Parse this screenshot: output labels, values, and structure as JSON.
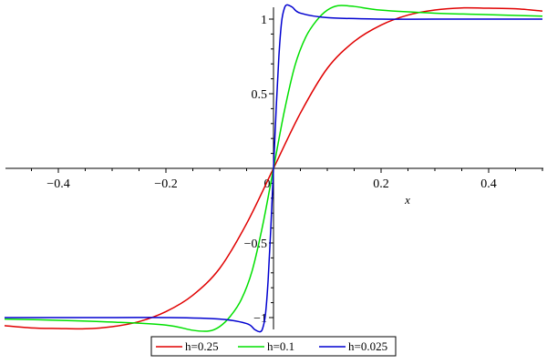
{
  "chart_data": {
    "type": "line",
    "title": "",
    "xlabel": "x",
    "ylabel": "",
    "xlim": [
      -0.5,
      0.5
    ],
    "ylim": [
      -1.1,
      1.1
    ],
    "grid": false,
    "legend_position": "bottom",
    "x_ticks": [
      {
        "value": -0.4,
        "label": "−0.4"
      },
      {
        "value": -0.2,
        "label": "−0.2"
      },
      {
        "value": 0,
        "label": "0"
      },
      {
        "value": 0.2,
        "label": "0.2"
      },
      {
        "value": 0.4,
        "label": "0.4"
      }
    ],
    "y_ticks": [
      {
        "value": -1,
        "label": "−1"
      },
      {
        "value": -0.5,
        "label": "−0.5"
      },
      {
        "value": 0.5,
        "label": "0.5"
      },
      {
        "value": 1,
        "label": "1"
      }
    ],
    "series": [
      {
        "name": "h=0.25",
        "color": "#e00000",
        "points": [
          [
            -0.5,
            -1.054
          ],
          [
            -0.45,
            -1.069
          ],
          [
            -0.4,
            -1.073
          ],
          [
            -0.35,
            -1.075
          ],
          [
            -0.3,
            -1.061
          ],
          [
            -0.25,
            -1.027
          ],
          [
            -0.2,
            -0.96
          ],
          [
            -0.15,
            -0.85
          ],
          [
            -0.1,
            -0.67
          ],
          [
            -0.05,
            -0.37
          ],
          [
            0,
            0
          ],
          [
            0.05,
            0.37
          ],
          [
            0.1,
            0.67
          ],
          [
            0.15,
            0.85
          ],
          [
            0.2,
            0.96
          ],
          [
            0.25,
            1.027
          ],
          [
            0.3,
            1.061
          ],
          [
            0.35,
            1.075
          ],
          [
            0.4,
            1.073
          ],
          [
            0.45,
            1.069
          ],
          [
            0.5,
            1.054
          ]
        ]
      },
      {
        "name": "h=0.1",
        "color": "#00e000",
        "points": [
          [
            -0.5,
            -1.01
          ],
          [
            -0.4,
            -1.018
          ],
          [
            -0.3,
            -1.03
          ],
          [
            -0.2,
            -1.05
          ],
          [
            -0.15,
            -1.085
          ],
          [
            -0.12,
            -1.09
          ],
          [
            -0.1,
            -1.06
          ],
          [
            -0.08,
            -0.99
          ],
          [
            -0.06,
            -0.88
          ],
          [
            -0.04,
            -0.69
          ],
          [
            -0.02,
            -0.38
          ],
          [
            0,
            0
          ],
          [
            0.02,
            0.38
          ],
          [
            0.04,
            0.69
          ],
          [
            0.06,
            0.88
          ],
          [
            0.08,
            0.99
          ],
          [
            0.1,
            1.06
          ],
          [
            0.12,
            1.09
          ],
          [
            0.15,
            1.085
          ],
          [
            0.2,
            1.06
          ],
          [
            0.3,
            1.04
          ],
          [
            0.4,
            1.03
          ],
          [
            0.5,
            1.02
          ]
        ]
      },
      {
        "name": "h=0.025",
        "color": "#0000d0",
        "points": [
          [
            -0.5,
            -1.0
          ],
          [
            -0.3,
            -1.0
          ],
          [
            -0.2,
            -1.0
          ],
          [
            -0.1,
            -1.01
          ],
          [
            -0.05,
            -1.04
          ],
          [
            -0.035,
            -1.08
          ],
          [
            -0.025,
            -1.095
          ],
          [
            -0.02,
            -1.07
          ],
          [
            -0.015,
            -0.98
          ],
          [
            -0.01,
            -0.75
          ],
          [
            -0.005,
            -0.4
          ],
          [
            0,
            0
          ],
          [
            0.005,
            0.4
          ],
          [
            0.01,
            0.75
          ],
          [
            0.015,
            0.98
          ],
          [
            0.02,
            1.07
          ],
          [
            0.025,
            1.095
          ],
          [
            0.035,
            1.08
          ],
          [
            0.05,
            1.04
          ],
          [
            0.1,
            1.01
          ],
          [
            0.2,
            1.0
          ],
          [
            0.3,
            1.0
          ],
          [
            0.5,
            1.0
          ]
        ]
      }
    ]
  }
}
